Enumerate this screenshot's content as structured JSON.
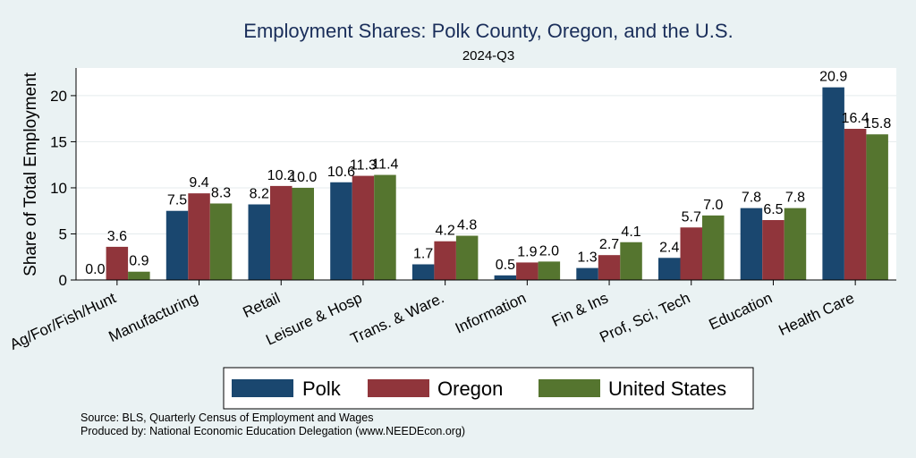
{
  "chart_data": {
    "type": "bar",
    "title": "Employment Shares: Polk County, Oregon, and the U.S.",
    "subtitle": "2024-Q3",
    "xlabel": "",
    "ylabel": "Share of Total Employment",
    "ylim": [
      0,
      23
    ],
    "yticks": [
      0,
      5,
      10,
      15,
      20
    ],
    "grid": true,
    "legend_position": "bottom",
    "categories": [
      "Ag/For/Fish/Hunt",
      "Manufacturing",
      "Retail",
      "Leisure & Hosp",
      "Trans. & Ware.",
      "Information",
      "Fin & Ins",
      "Prof, Sci, Tech",
      "Education",
      "Health Care"
    ],
    "series": [
      {
        "name": "Polk",
        "color": "#1a476f",
        "values": [
          0.0,
          7.5,
          8.2,
          10.6,
          1.7,
          0.5,
          1.3,
          2.4,
          7.8,
          20.9
        ]
      },
      {
        "name": "Oregon",
        "color": "#90353b",
        "values": [
          3.6,
          9.4,
          10.2,
          11.3,
          4.2,
          1.9,
          2.7,
          5.7,
          6.5,
          16.4
        ]
      },
      {
        "name": "United States",
        "color": "#55752f",
        "values": [
          0.9,
          8.3,
          10.0,
          11.4,
          4.8,
          2.0,
          4.1,
          7.0,
          7.8,
          15.8
        ]
      }
    ]
  },
  "notes": {
    "source": "Source: BLS, Quarterly Census of Employment and Wages",
    "produced_by": "Produced by: National Economic Education Delegation (www.NEEDEcon.org)"
  }
}
